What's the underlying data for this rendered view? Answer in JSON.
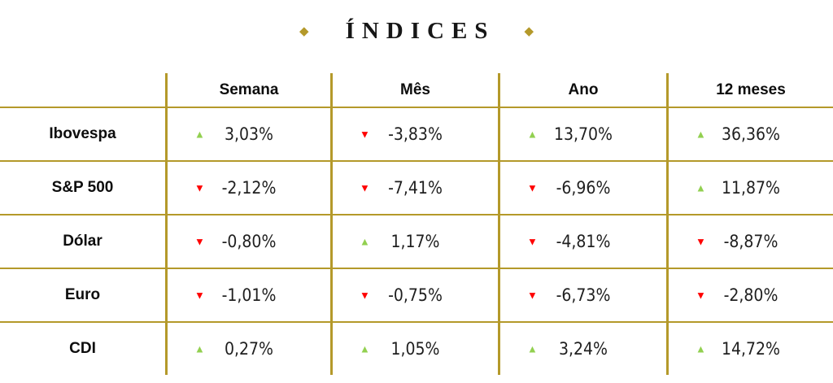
{
  "title": {
    "text": "ÍNDICES",
    "diamond": "◆"
  },
  "colors": {
    "gold": "#B4992A",
    "green": "#92D050",
    "red": "#FF0000",
    "text": "#1F1F1F"
  },
  "table": {
    "headers": [
      "Semana",
      "Mês",
      "Ano",
      "12 meses"
    ],
    "rows": [
      {
        "label": "Ibovespa",
        "cells": [
          {
            "dir": "up",
            "value": "3,03%"
          },
          {
            "dir": "down",
            "value": "-3,83%"
          },
          {
            "dir": "up",
            "value": "13,70%"
          },
          {
            "dir": "up",
            "value": "36,36%"
          }
        ]
      },
      {
        "label": "S&P 500",
        "cells": [
          {
            "dir": "down",
            "value": "-2,12%"
          },
          {
            "dir": "down",
            "value": "-7,41%"
          },
          {
            "dir": "down",
            "value": "-6,96%"
          },
          {
            "dir": "up",
            "value": "11,87%"
          }
        ]
      },
      {
        "label": "Dólar",
        "cells": [
          {
            "dir": "down",
            "value": "-0,80%"
          },
          {
            "dir": "up",
            "value": "1,17%"
          },
          {
            "dir": "down",
            "value": "-4,81%"
          },
          {
            "dir": "down",
            "value": "-8,87%"
          }
        ]
      },
      {
        "label": "Euro",
        "cells": [
          {
            "dir": "down",
            "value": "-1,01%"
          },
          {
            "dir": "down",
            "value": "-0,75%"
          },
          {
            "dir": "down",
            "value": "-6,73%"
          },
          {
            "dir": "down",
            "value": "-2,80%"
          }
        ]
      },
      {
        "label": "CDI",
        "cells": [
          {
            "dir": "up",
            "value": "0,27%"
          },
          {
            "dir": "up",
            "value": "1,05%"
          },
          {
            "dir": "up",
            "value": "3,24%"
          },
          {
            "dir": "up",
            "value": "14,72%"
          }
        ]
      }
    ]
  },
  "chart_data": {
    "type": "table",
    "title": "ÍNDICES",
    "columns": [
      "",
      "Semana",
      "Mês",
      "Ano",
      "12 meses"
    ],
    "rows": [
      {
        "label": "Ibovespa",
        "values_pct": [
          3.03,
          -3.83,
          13.7,
          36.36
        ]
      },
      {
        "label": "S&P 500",
        "values_pct": [
          -2.12,
          -7.41,
          -6.96,
          11.87
        ]
      },
      {
        "label": "Dólar",
        "values_pct": [
          -0.8,
          1.17,
          -4.81,
          -8.87
        ]
      },
      {
        "label": "Euro",
        "values_pct": [
          -1.01,
          -0.75,
          -6.73,
          -2.8
        ]
      },
      {
        "label": "CDI",
        "values_pct": [
          0.27,
          1.05,
          3.24,
          14.72
        ]
      }
    ],
    "notes": "up values shown with green up-triangle, negative values with red down-triangle; decimal comma formatting"
  }
}
